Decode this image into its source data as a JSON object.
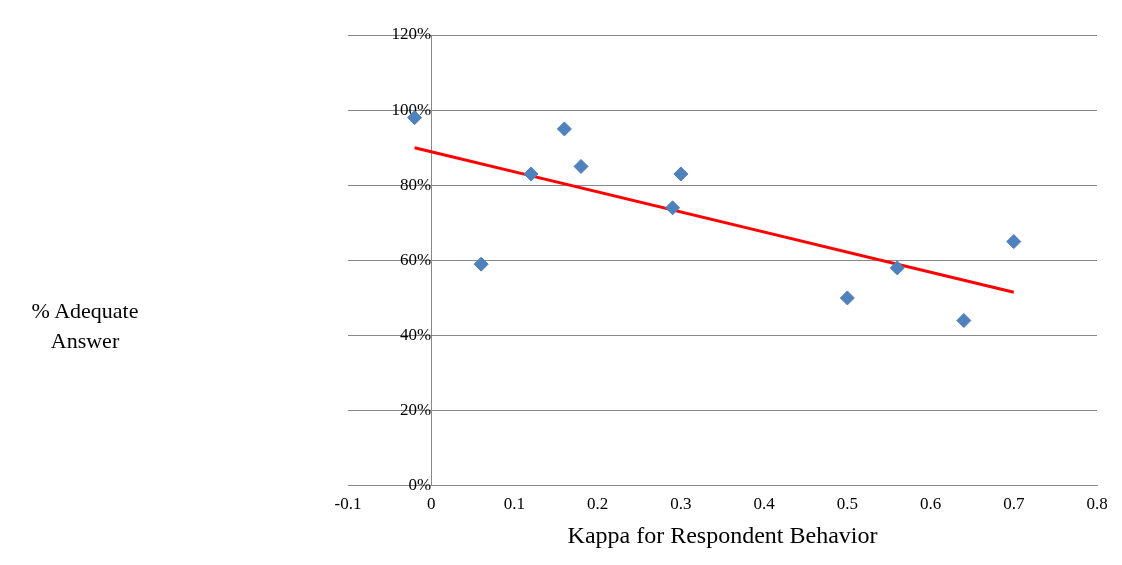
{
  "chart_data": {
    "type": "scatter",
    "xlabel": "Kappa for Respondent Behavior",
    "annotations": [
      "% Adequate Answer"
    ],
    "xlim": [
      -0.1,
      0.8
    ],
    "xticks": [
      -0.1,
      0,
      0.1,
      0.2,
      0.3,
      0.4,
      0.5,
      0.6,
      0.7,
      0.8
    ],
    "ylim": [
      0,
      120
    ],
    "yticks": [
      {
        "value": 0,
        "label": "0%"
      },
      {
        "value": 20,
        "label": "20%"
      },
      {
        "value": 40,
        "label": "40%"
      },
      {
        "value": 60,
        "label": "60%"
      },
      {
        "value": 80,
        "label": "80%"
      },
      {
        "value": 100,
        "label": "100%"
      },
      {
        "value": 120,
        "label": "120%"
      }
    ],
    "grid": "y",
    "legend": false,
    "series": [
      {
        "color": "#4f81bd",
        "marker": "diamond",
        "x": [
          -0.02,
          0.06,
          0.12,
          0.16,
          0.18,
          0.29,
          0.3,
          0.5,
          0.56,
          0.64,
          0.7
        ],
        "values": [
          98,
          59,
          83,
          95,
          85,
          74,
          83,
          50,
          58,
          44,
          65
        ]
      },
      {
        "type": "line",
        "marker": "none",
        "line_style": "solid",
        "color": "#ff0000",
        "x": [
          -0.02,
          0.7
        ],
        "values": [
          90,
          51.5
        ]
      }
    ]
  }
}
